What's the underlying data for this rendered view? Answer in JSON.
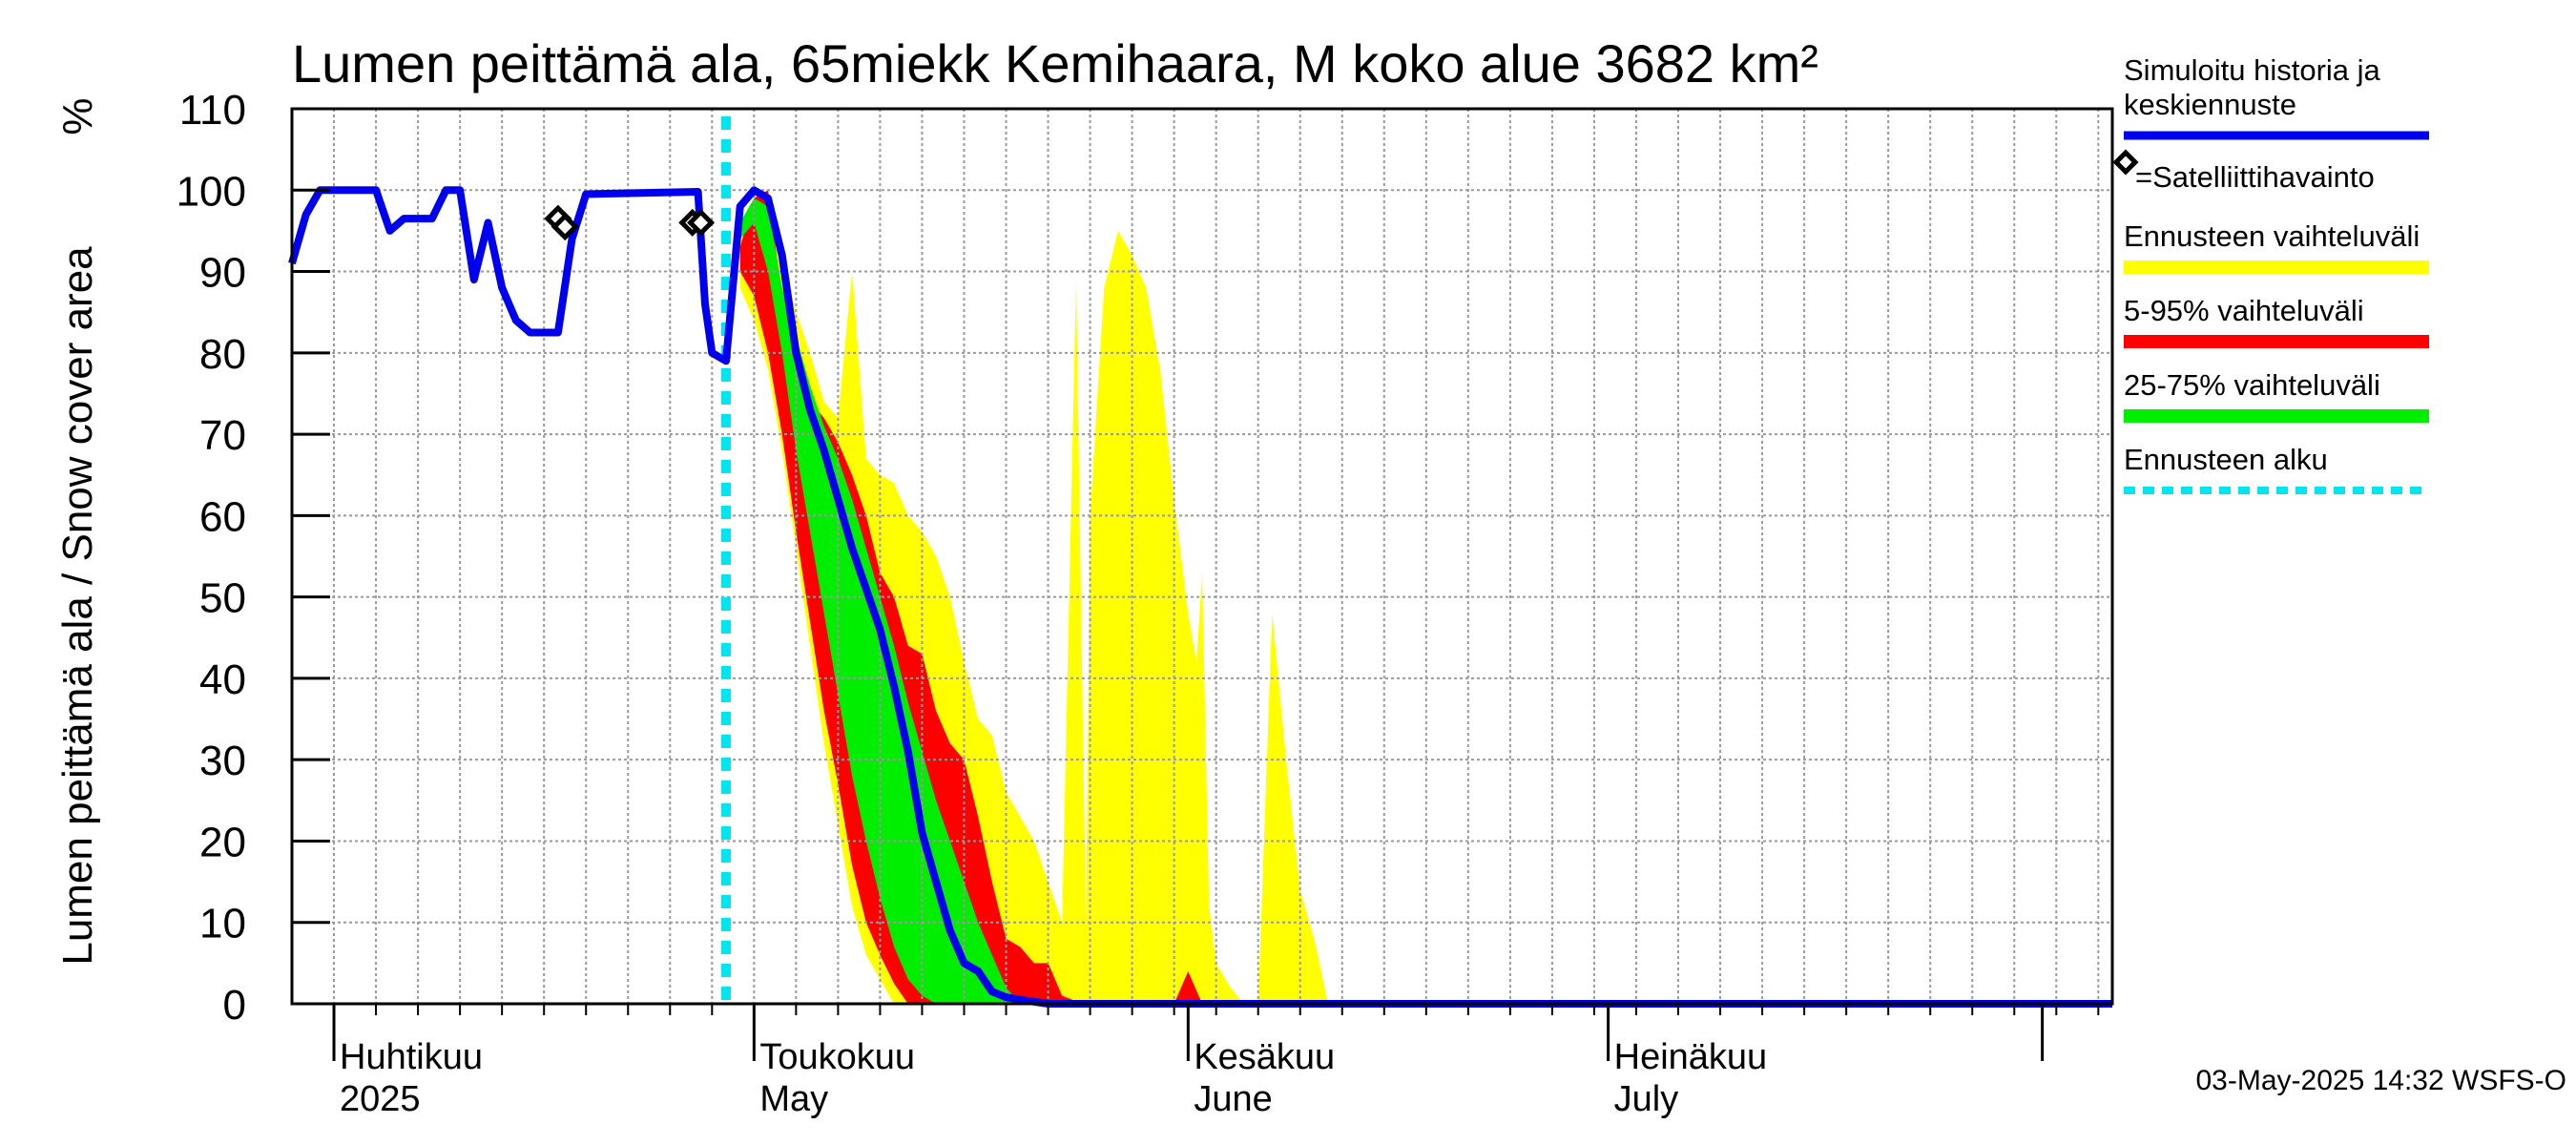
{
  "chart_data": {
    "type": "area",
    "title": "Lumen peittämä ala, 65miekk Kemihaara, M koko alue 3682 km²",
    "ylabel": "Lumen peittämä ala / Snow cover area",
    "yunit": "%",
    "ylim": [
      0,
      110
    ],
    "yticks": [
      "0",
      "10",
      "20",
      "30",
      "40",
      "50",
      "60",
      "70",
      "80",
      "90",
      "100",
      "110"
    ],
    "xlim": [
      "2025-03-29",
      "2025-08-06"
    ],
    "months": [
      {
        "date": "2025-04-01",
        "label1": "Huhtikuu",
        "label2": "2025"
      },
      {
        "date": "2025-05-01",
        "label1": "Toukokuu",
        "label2": "May"
      },
      {
        "date": "2025-06-01",
        "label1": "Kesäkuu",
        "label2": "June"
      },
      {
        "date": "2025-07-01",
        "label1": "Heinäkuu",
        "label2": "July"
      },
      {
        "date": "2025-08-01",
        "label1": "",
        "label2": ""
      }
    ],
    "forecast_start": "2025-04-29",
    "footer": "03-May-2025 14:32 WSFS-O",
    "colors": {
      "history": "#0000ee",
      "full_range": "#ffff00",
      "p5_95": "#ff0000",
      "p25_75": "#00ee00",
      "forecast_start": "#00e5ee",
      "grid": "#9a9a9a"
    },
    "legend": [
      {
        "key": "history",
        "label": "Simuloitu historia ja keskiennuste",
        "lines": [
          "Simuloitu historia ja",
          "keskiennuste"
        ]
      },
      {
        "key": "satellite",
        "label": "=Satelliittihavainto"
      },
      {
        "key": "full_range",
        "label": "Ennusteen vaihteluväli"
      },
      {
        "key": "p5_95",
        "label": "5-95% vaihteluväli"
      },
      {
        "key": "p25_75",
        "label": "25-75% vaihteluväli"
      },
      {
        "key": "forecast_start",
        "label": "Ennusteen alku"
      }
    ],
    "series": [
      {
        "key": "history",
        "name": "Simuloitu historia ja keskiennuste",
        "points": [
          [
            "2025-03-29",
            91
          ],
          [
            "2025-03-30",
            97
          ],
          [
            "2025-03-31",
            100
          ],
          [
            "2025-04-02",
            100
          ],
          [
            "2025-04-04",
            100
          ],
          [
            "2025-04-05",
            95
          ],
          [
            "2025-04-06",
            96.5
          ],
          [
            "2025-04-08",
            96.5
          ],
          [
            "2025-04-09",
            100
          ],
          [
            "2025-04-10",
            100
          ],
          [
            "2025-04-11",
            89
          ],
          [
            "2025-04-12",
            96
          ],
          [
            "2025-04-13",
            88
          ],
          [
            "2025-04-14",
            84
          ],
          [
            "2025-04-15",
            82.5
          ],
          [
            "2025-04-17",
            82.5
          ],
          [
            "2025-04-18",
            94
          ],
          [
            "2025-04-19",
            99.5
          ],
          [
            "2025-04-27",
            99.8
          ],
          [
            "2025-04-27.5",
            86
          ],
          [
            "2025-04-28",
            80
          ],
          [
            "2025-04-29",
            79
          ],
          [
            "2025-04-30",
            98
          ],
          [
            "2025-05-01",
            100
          ],
          [
            "2025-05-02",
            99
          ],
          [
            "2025-05-03",
            92
          ],
          [
            "2025-05-04",
            80
          ],
          [
            "2025-05-05",
            73
          ],
          [
            "2025-05-06",
            68
          ],
          [
            "2025-05-07",
            62
          ],
          [
            "2025-05-08",
            56
          ],
          [
            "2025-05-09",
            51
          ],
          [
            "2025-05-10",
            46
          ],
          [
            "2025-05-11",
            39
          ],
          [
            "2025-05-12",
            31
          ],
          [
            "2025-05-13",
            21
          ],
          [
            "2025-05-14",
            15
          ],
          [
            "2025-05-15",
            9
          ],
          [
            "2025-05-16",
            5
          ],
          [
            "2025-05-17",
            4
          ],
          [
            "2025-05-18",
            1.5
          ],
          [
            "2025-05-19",
            0.8
          ],
          [
            "2025-05-20",
            0.5
          ],
          [
            "2025-05-22",
            0
          ],
          [
            "2025-08-06",
            0
          ]
        ]
      },
      {
        "key": "full_range",
        "name": "Ennusteen vaihteluväli",
        "upper": [
          [
            "2025-04-30",
            95
          ],
          [
            "2025-05-02",
            100
          ],
          [
            "2025-05-03",
            92
          ],
          [
            "2025-05-04",
            85
          ],
          [
            "2025-05-05",
            80
          ],
          [
            "2025-05-06",
            74
          ],
          [
            "2025-05-07",
            72
          ],
          [
            "2025-05-08",
            90
          ],
          [
            "2025-05-09",
            67
          ],
          [
            "2025-05-10",
            65
          ],
          [
            "2025-05-11",
            64
          ],
          [
            "2025-05-12",
            60
          ],
          [
            "2025-05-13",
            58
          ],
          [
            "2025-05-14",
            55
          ],
          [
            "2025-05-15",
            50
          ],
          [
            "2025-05-16",
            42
          ],
          [
            "2025-05-17",
            35
          ],
          [
            "2025-05-18",
            33
          ],
          [
            "2025-05-19",
            26
          ],
          [
            "2025-05-20",
            23
          ],
          [
            "2025-05-21",
            20
          ],
          [
            "2025-05-22",
            15
          ],
          [
            "2025-05-23",
            10
          ],
          [
            "2025-05-24",
            89
          ],
          [
            "2025-05-24.7",
            10
          ],
          [
            "2025-05-25",
            60
          ],
          [
            "2025-05-26",
            88
          ],
          [
            "2025-05-27",
            95
          ],
          [
            "2025-05-28",
            92
          ],
          [
            "2025-05-29",
            88
          ],
          [
            "2025-05-30",
            78
          ],
          [
            "2025-05-31",
            62
          ],
          [
            "2025-06-01",
            48
          ],
          [
            "2025-06-01.6",
            42
          ],
          [
            "2025-06-02",
            53
          ],
          [
            "2025-06-02.5",
            12
          ],
          [
            "2025-06-03",
            5
          ],
          [
            "2025-06-04",
            2
          ],
          [
            "2025-06-05",
            0
          ],
          [
            "2025-06-06",
            0
          ],
          [
            "2025-06-07",
            48
          ],
          [
            "2025-06-08",
            30
          ],
          [
            "2025-06-09",
            14
          ],
          [
            "2025-06-10",
            8
          ],
          [
            "2025-06-11",
            0
          ]
        ],
        "lower": [
          [
            "2025-04-30",
            88
          ],
          [
            "2025-05-01",
            84
          ],
          [
            "2025-05-02",
            78
          ],
          [
            "2025-05-03",
            68
          ],
          [
            "2025-05-04",
            56
          ],
          [
            "2025-05-05",
            44
          ],
          [
            "2025-05-06",
            32
          ],
          [
            "2025-05-07",
            22
          ],
          [
            "2025-05-08",
            12
          ],
          [
            "2025-05-09",
            6
          ],
          [
            "2025-05-10",
            3
          ],
          [
            "2025-05-11",
            0
          ]
        ]
      },
      {
        "key": "p5_95",
        "name": "5-95% vaihteluväli",
        "upper": [
          [
            "2025-04-30",
            93
          ],
          [
            "2025-05-01",
            99
          ],
          [
            "2025-05-02",
            100
          ],
          [
            "2025-05-03",
            87
          ],
          [
            "2025-05-04",
            79
          ],
          [
            "2025-05-05",
            74
          ],
          [
            "2025-05-06",
            72
          ],
          [
            "2025-05-07",
            69
          ],
          [
            "2025-05-08",
            65
          ],
          [
            "2025-05-09",
            60
          ],
          [
            "2025-05-10",
            53
          ],
          [
            "2025-05-11",
            50
          ],
          [
            "2025-05-12",
            44
          ],
          [
            "2025-05-13",
            43
          ],
          [
            "2025-05-14",
            36
          ],
          [
            "2025-05-15",
            32
          ],
          [
            "2025-05-16",
            30
          ],
          [
            "2025-05-17",
            23
          ],
          [
            "2025-05-18",
            15
          ],
          [
            "2025-05-19",
            8
          ],
          [
            "2025-05-20",
            7
          ],
          [
            "2025-05-21",
            5
          ],
          [
            "2025-05-22",
            5
          ],
          [
            "2025-05-23",
            1
          ],
          [
            "2025-05-24",
            0.3
          ],
          [
            "2025-05-31",
            0
          ],
          [
            "2025-06-01",
            4
          ],
          [
            "2025-06-02",
            0
          ]
        ],
        "lower": [
          [
            "2025-04-30",
            90
          ],
          [
            "2025-05-01",
            87
          ],
          [
            "2025-05-02",
            80
          ],
          [
            "2025-05-03",
            70
          ],
          [
            "2025-05-04",
            58
          ],
          [
            "2025-05-05",
            47
          ],
          [
            "2025-05-06",
            36
          ],
          [
            "2025-05-07",
            27
          ],
          [
            "2025-05-08",
            17
          ],
          [
            "2025-05-09",
            10
          ],
          [
            "2025-05-10",
            6
          ],
          [
            "2025-05-11",
            2.5
          ],
          [
            "2025-05-12",
            0
          ]
        ]
      },
      {
        "key": "p25_75",
        "name": "25-75% vaihteluväli",
        "upper": [
          [
            "2025-04-30",
            96
          ],
          [
            "2025-05-01",
            99
          ],
          [
            "2025-05-02",
            98
          ],
          [
            "2025-05-03",
            88
          ],
          [
            "2025-05-04",
            82
          ],
          [
            "2025-05-05",
            76
          ],
          [
            "2025-05-06",
            71
          ],
          [
            "2025-05-07",
            67
          ],
          [
            "2025-05-08",
            62
          ],
          [
            "2025-05-09",
            56
          ],
          [
            "2025-05-10",
            50
          ],
          [
            "2025-05-11",
            44
          ],
          [
            "2025-05-12",
            37
          ],
          [
            "2025-05-13",
            31
          ],
          [
            "2025-05-14",
            25
          ],
          [
            "2025-05-15",
            20
          ],
          [
            "2025-05-16",
            15
          ],
          [
            "2025-05-17",
            10
          ],
          [
            "2025-05-18",
            6
          ],
          [
            "2025-05-19",
            2
          ],
          [
            "2025-05-20",
            0
          ]
        ],
        "lower": [
          [
            "2025-04-30",
            94
          ],
          [
            "2025-05-01",
            96
          ],
          [
            "2025-05-02",
            90
          ],
          [
            "2025-05-03",
            80
          ],
          [
            "2025-05-04",
            68
          ],
          [
            "2025-05-05",
            58
          ],
          [
            "2025-05-06",
            48
          ],
          [
            "2025-05-07",
            38
          ],
          [
            "2025-05-08",
            28
          ],
          [
            "2025-05-09",
            20
          ],
          [
            "2025-05-10",
            13
          ],
          [
            "2025-05-11",
            7
          ],
          [
            "2025-05-12",
            3
          ],
          [
            "2025-05-13",
            1
          ],
          [
            "2025-05-14",
            0
          ]
        ]
      }
    ],
    "satellite": [
      {
        "date": "2025-04-17",
        "value": 96.5
      },
      {
        "date": "2025-04-17.5",
        "value": 95.5
      },
      {
        "date": "2025-04-26.6",
        "value": 96
      },
      {
        "date": "2025-04-27.2",
        "value": 96
      }
    ]
  }
}
